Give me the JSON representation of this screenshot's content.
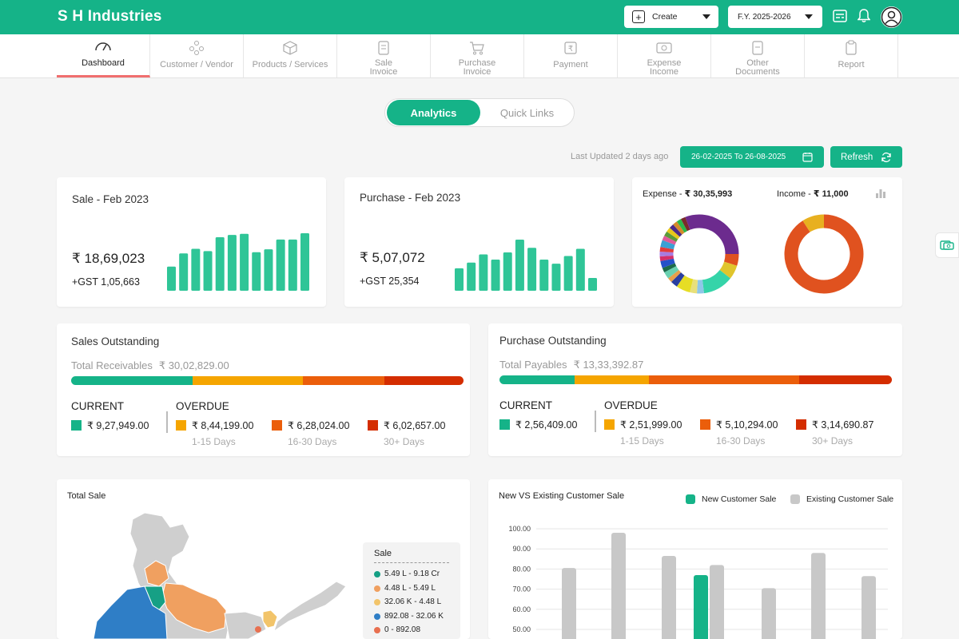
{
  "app": {
    "title": "S H Industries"
  },
  "header": {
    "create_label": "Create",
    "fy_label": "F.Y. 2025-2026"
  },
  "nav": [
    {
      "label": "Dashboard",
      "icon": "speedometer-icon"
    },
    {
      "label": "Customer / Vendor",
      "icon": "users-icon"
    },
    {
      "label": "Products / Services",
      "icon": "box-icon"
    },
    {
      "label": "Sale\nInvoice",
      "icon": "invoice-icon"
    },
    {
      "label": "Purchase\nInvoice",
      "icon": "cart-icon"
    },
    {
      "label": "Payment",
      "icon": "rupee-icon"
    },
    {
      "label": "Expense\nIncome",
      "icon": "cash-icon"
    },
    {
      "label": "Other\nDocuments",
      "icon": "document-icon"
    },
    {
      "label": "Report",
      "icon": "clipboard-icon"
    }
  ],
  "toggle": {
    "analytics": "Analytics",
    "quick_links": "Quick Links"
  },
  "toolbar": {
    "last_updated": "Last Updated 2 days ago",
    "date_range": "26-02-2025 To 26-08-2025",
    "refresh": "Refresh"
  },
  "sale_card": {
    "title": "Sale - Feb 2023",
    "amount": "₹ 18,69,023",
    "gst": "+GST 1,05,663",
    "bars": [
      0.42,
      0.65,
      0.73,
      0.69,
      0.93,
      0.97,
      0.99,
      0.67,
      0.72,
      0.89,
      0.89,
      1.0
    ]
  },
  "purchase_card": {
    "title": "Purchase - Feb 2023",
    "amount": "₹ 5,07,072",
    "gst": "+GST 25,354",
    "bars": [
      0.44,
      0.55,
      0.71,
      0.61,
      0.75,
      1.0,
      0.84,
      0.61,
      0.53,
      0.68,
      0.82,
      0.25
    ]
  },
  "ring_card": {
    "expense_label": "Expense -",
    "expense_value": "₹ 30,35,993",
    "income_label": "Income -",
    "income_value": "₹ 11,000",
    "expense_slices": [
      {
        "v": 0.26,
        "c": "#6c2b8e"
      },
      {
        "v": 0.05,
        "c": "#e0521f"
      },
      {
        "v": 0.06,
        "c": "#e0c52d"
      },
      {
        "v": 0.13,
        "c": "#35d4a9"
      },
      {
        "v": 0.03,
        "c": "#8fc7e8"
      },
      {
        "v": 0.03,
        "c": "#e8e07a"
      },
      {
        "v": 0.06,
        "c": "#e6dd25"
      },
      {
        "v": 0.03,
        "c": "#2a3fa0"
      },
      {
        "v": 0.02,
        "c": "#e8a04a"
      },
      {
        "v": 0.03,
        "c": "#6ad1b0"
      },
      {
        "v": 0.02,
        "c": "#1c6a4a"
      },
      {
        "v": 0.03,
        "c": "#2451c9"
      },
      {
        "v": 0.02,
        "c": "#d42f6a"
      },
      {
        "v": 0.02,
        "c": "#a87be0"
      },
      {
        "v": 0.02,
        "c": "#e33b3b"
      },
      {
        "v": 0.03,
        "c": "#3ba0d4"
      },
      {
        "v": 0.02,
        "c": "#e05a9a"
      },
      {
        "v": 0.02,
        "c": "#5a9a3a"
      },
      {
        "v": 0.02,
        "c": "#e8c81a"
      },
      {
        "v": 0.02,
        "c": "#4a2a8a"
      },
      {
        "v": 0.02,
        "c": "#d48a2a"
      },
      {
        "v": 0.02,
        "c": "#2ab84a"
      },
      {
        "v": 0.02,
        "c": "#7a2a2a"
      },
      {
        "v": 0.06,
        "c": "#6c2b8e"
      }
    ],
    "income_slices": [
      {
        "v": 0.91,
        "c": "#e0521f"
      },
      {
        "v": 0.09,
        "c": "#e8b020"
      }
    ]
  },
  "sales_outstanding": {
    "title": "Sales Outstanding",
    "total_label": "Total Receivables",
    "total_value": "₹ 30,02,829.00",
    "current_label": "CURRENT",
    "overdue_label": "OVERDUE",
    "current_value": "₹ 9,27,949.00",
    "buckets": [
      {
        "value": "₹ 8,44,199.00",
        "days": "1-15 Days",
        "color": "#f5a500"
      },
      {
        "value": "₹ 6,28,024.00",
        "days": "16-30 Days",
        "color": "#eb5e0b"
      },
      {
        "value": "₹ 6,02,657.00",
        "days": "30+ Days",
        "color": "#d42d00"
      }
    ],
    "current_color": "#15b388",
    "shares": [
      0.309,
      0.281,
      0.209,
      0.201
    ]
  },
  "purchase_outstanding": {
    "title": "Purchase Outstanding",
    "total_label": "Total Payables",
    "total_value": "₹ 13,33,392.87",
    "current_label": "CURRENT",
    "overdue_label": "OVERDUE",
    "current_value": "₹ 2,56,409.00",
    "buckets": [
      {
        "value": "₹ 2,51,999.00",
        "days": "1-15 Days",
        "color": "#f5a500"
      },
      {
        "value": "₹ 5,10,294.00",
        "days": "16-30 Days",
        "color": "#eb5e0b"
      },
      {
        "value": "₹ 3,14,690.87",
        "days": "30+ Days",
        "color": "#d42d00"
      }
    ],
    "current_color": "#15b388",
    "shares": [
      0.192,
      0.189,
      0.383,
      0.236
    ]
  },
  "total_sale": {
    "title": "Total Sale",
    "legend_title": "Sale",
    "legend": [
      {
        "label": "5.49 L - 9.18 Cr",
        "color": "#16a085"
      },
      {
        "label": "4.48 L - 5.49 L",
        "color": "#f0a060"
      },
      {
        "label": "32.06 K - 4.48 L",
        "color": "#f2c46a"
      },
      {
        "label": "892.08 - 32.06 K",
        "color": "#2f7ec6"
      },
      {
        "label": "0 - 892.08",
        "color": "#e87050"
      }
    ]
  },
  "customer_chart": {
    "title": "New VS Existing Customer Sale",
    "legend_new": "New Customer Sale",
    "legend_existing": "Existing Customer Sale",
    "new_color": "#15b388",
    "existing_color": "#c8c8c8"
  },
  "chart_data": {
    "type": "bar",
    "title": "New VS Existing Customer Sale",
    "y_ticks": [
      "100.00",
      "90.00",
      "80.00",
      "70.00",
      "60.00",
      "50.00"
    ],
    "ylim": [
      50,
      100
    ],
    "series": [
      {
        "name": "New Customer Sale",
        "values": [
          null,
          null,
          null,
          77,
          null,
          null,
          null
        ]
      },
      {
        "name": "Existing Customer Sale",
        "values": [
          80.5,
          98,
          86.5,
          82,
          70.5,
          88,
          76.5
        ]
      }
    ]
  }
}
